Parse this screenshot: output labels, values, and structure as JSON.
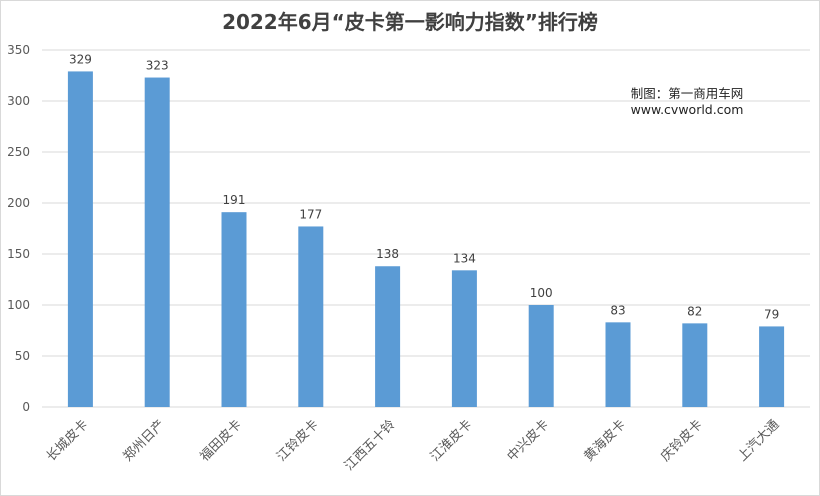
{
  "chart_data": {
    "type": "bar",
    "title": "2022年6月“皮卡第一影响力指数”排行榜",
    "categories": [
      "长城皮卡",
      "郑州日产",
      "福田皮卡",
      "江铃皮卡",
      "江西五十铃",
      "江淮皮卡",
      "中兴皮卡",
      "黄海皮卡",
      "庆铃皮卡",
      "上汽大通"
    ],
    "values": [
      329,
      323,
      191,
      177,
      138,
      134,
      100,
      83,
      82,
      79
    ],
    "ylim": [
      0,
      350
    ],
    "yticks": [
      0,
      50,
      100,
      150,
      200,
      250,
      300,
      350
    ],
    "xlabel": "",
    "ylabel": "",
    "grid": true,
    "bar_color": "#5b9bd5",
    "annotations": [
      "制图：第一商用车网",
      "www.cvworld.com"
    ]
  }
}
